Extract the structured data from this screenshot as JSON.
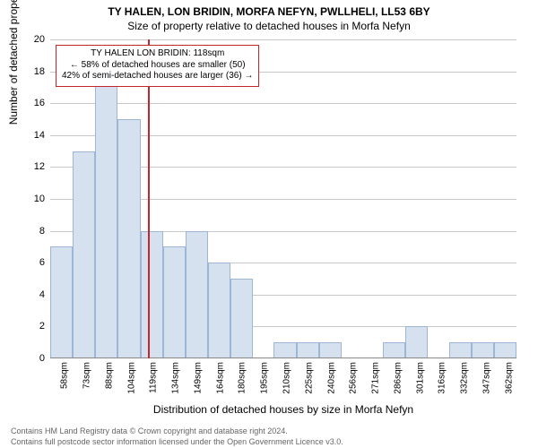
{
  "title_main": "TY HALEN, LON BRIDIN, MORFA NEFYN, PWLLHELI, LL53 6BY",
  "title_sub": "Size of property relative to detached houses in Morfa Nefyn",
  "y_axis_title": "Number of detached properties",
  "x_axis_title": "Distribution of detached houses by size in Morfa Nefyn",
  "annotation": {
    "line1": "TY HALEN LON BRIDIN: 118sqm",
    "line2": "← 58% of detached houses are smaller (50)",
    "line3": "42% of semi-detached houses are larger (36) →"
  },
  "footer_line1": "Contains HM Land Registry data © Crown copyright and database right 2024.",
  "footer_line2": "Contains full postcode sector information licensed under the Open Government Licence v3.0.",
  "chart": {
    "type": "histogram",
    "bar_fill": "#d6e1f0",
    "bar_stroke": "#9db6d6",
    "grid_color": "#c8c8c8",
    "background_color": "#ffffff",
    "highlight_color": "#c1272d",
    "highlight_x_value": 118,
    "ylim": [
      0,
      20
    ],
    "ytick_step": 2,
    "title_fontsize": 12,
    "axis_label_fontsize": 12,
    "tick_label_fontsize": 11,
    "x_tick_label_fontsize": 10,
    "x_labels": [
      "58sqm",
      "73sqm",
      "88sqm",
      "104sqm",
      "119sqm",
      "134sqm",
      "149sqm",
      "164sqm",
      "180sqm",
      "195sqm",
      "210sqm",
      "225sqm",
      "240sqm",
      "256sqm",
      "271sqm",
      "286sqm",
      "301sqm",
      "316sqm",
      "332sqm",
      "347sqm",
      "362sqm"
    ],
    "values": [
      7,
      13,
      18,
      15,
      8,
      7,
      8,
      6,
      5,
      0,
      1,
      1,
      1,
      0,
      0,
      1,
      2,
      0,
      1,
      1,
      1
    ]
  }
}
